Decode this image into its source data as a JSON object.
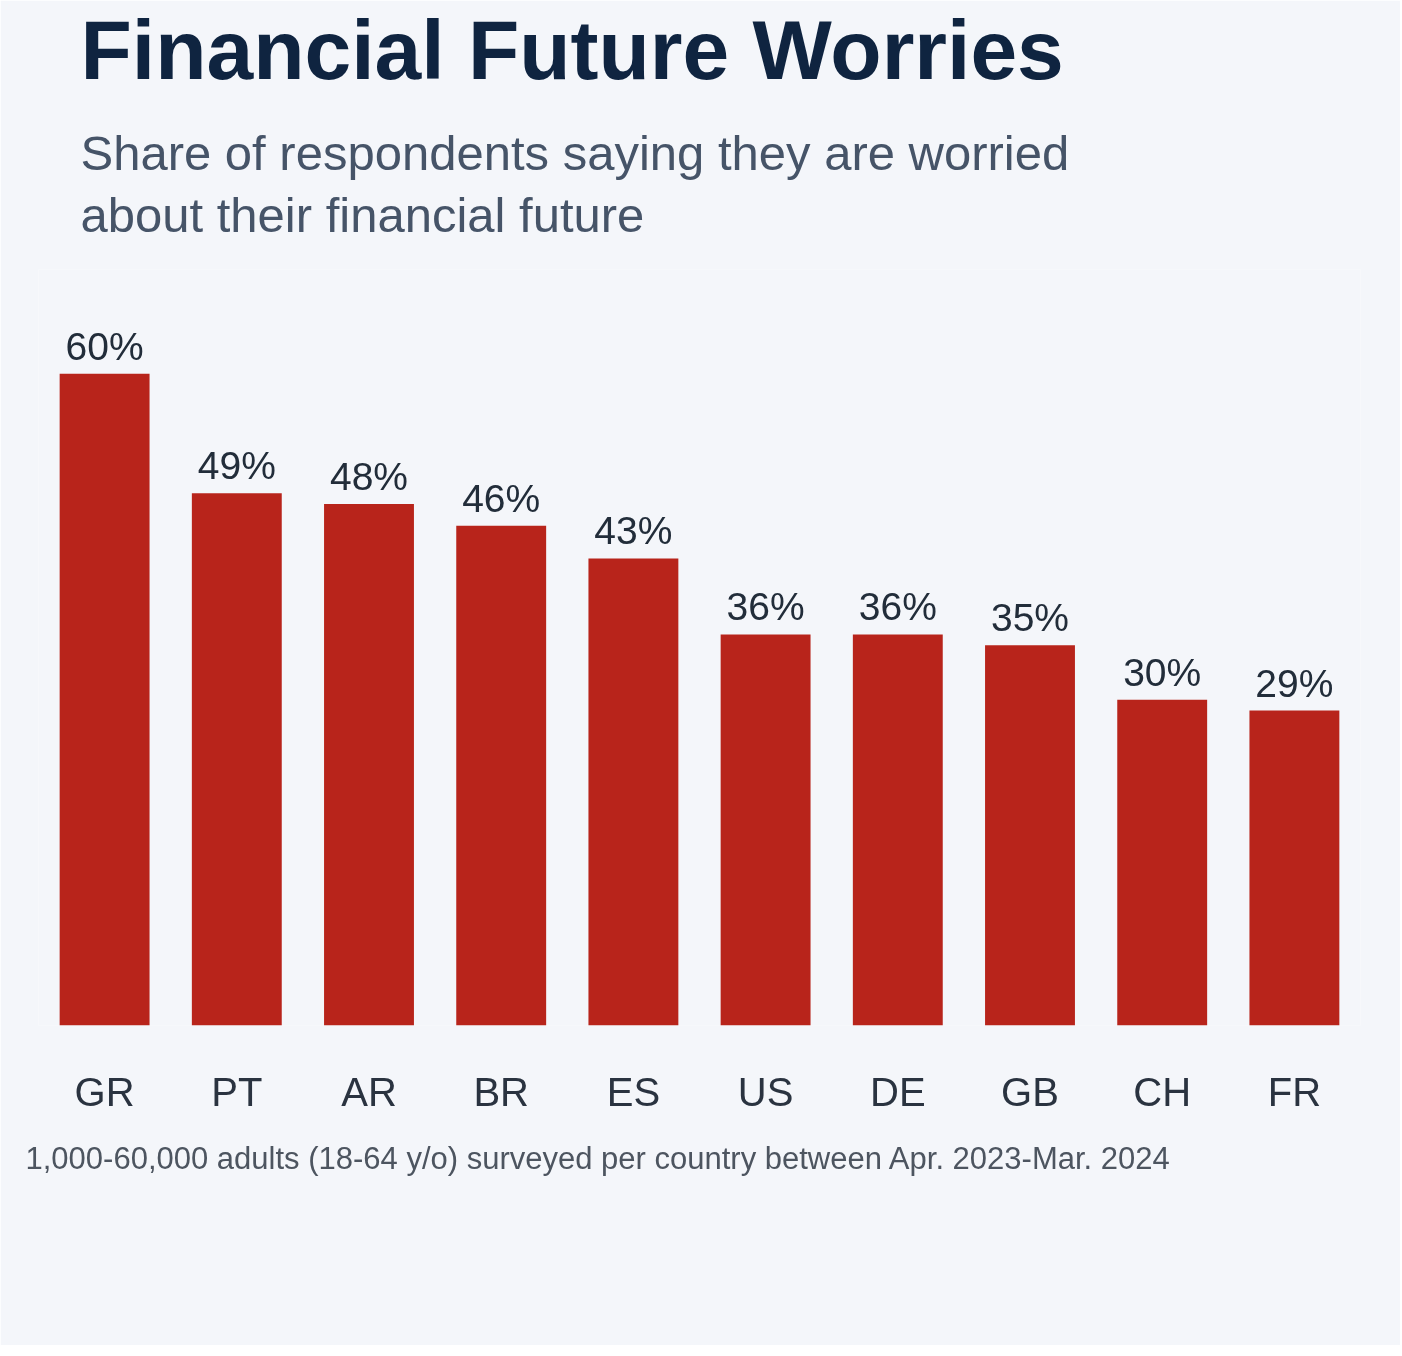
{
  "chart_data": {
    "type": "bar",
    "title": "Financial Future Worries",
    "subtitle": "Share of respondents saying they are worried about their financial future",
    "categories": [
      "GR",
      "PT",
      "AR",
      "BR",
      "ES",
      "US",
      "DE",
      "GB",
      "CH",
      "FR"
    ],
    "values": [
      60,
      49,
      48,
      46,
      43,
      36,
      36,
      35,
      30,
      29
    ],
    "value_labels": [
      "60%",
      "49%",
      "48%",
      "46%",
      "43%",
      "36%",
      "36%",
      "35%",
      "30%",
      "29%"
    ],
    "color": "#b8241b",
    "annotations": [
      "1,000-60,000 adults (18-64 y/o) surveyed per country between Apr. 2023-Mar. 2024"
    ]
  }
}
